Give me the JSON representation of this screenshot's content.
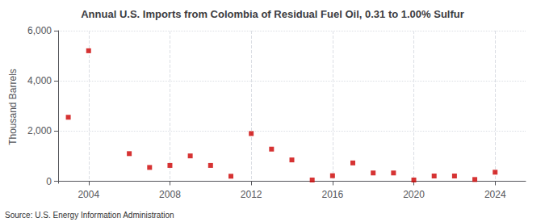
{
  "chart_data": {
    "type": "scatter",
    "title": "Annual U.S. Imports from Colombia of Residual Fuel Oil, 0.31 to 1.00% Sulfur",
    "ylabel": "Thousand Barrels",
    "annotation": "Source: U.S. Energy Information Administration",
    "x": [
      2003,
      2004,
      2006,
      2007,
      2008,
      2009,
      2010,
      2011,
      2012,
      2013,
      2014,
      2015,
      2016,
      2017,
      2018,
      2019,
      2020,
      2021,
      2022,
      2023,
      2024
    ],
    "values": [
      2550,
      5200,
      1100,
      550,
      630,
      1010,
      630,
      200,
      1900,
      1280,
      850,
      50,
      220,
      730,
      330,
      330,
      50,
      210,
      210,
      70,
      360
    ],
    "color": "#cc0000",
    "marker": "square",
    "xlim": [
      2002.5,
      2025.5
    ],
    "xticks": [
      2004,
      2008,
      2012,
      2016,
      2020,
      2024
    ],
    "ylim": [
      -80,
      6000
    ],
    "yticks": [
      0,
      {
        "value": 2000,
        "label": "2,000"
      },
      {
        "value": 4000,
        "label": "4,000"
      },
      {
        "value": 6000,
        "label": "6,000"
      }
    ],
    "grid": true
  }
}
